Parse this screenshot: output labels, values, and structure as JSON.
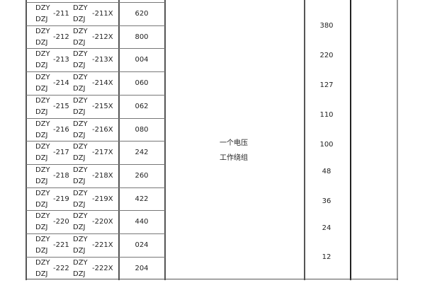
{
  "rows": [
    {
      "a": "DZY",
      "b": "DZJ",
      "num": "-211",
      "c": "DZY",
      "d": "DZJ",
      "numx": "-211X",
      "code": "620"
    },
    {
      "a": "DZY",
      "b": "DZJ",
      "num": "-212",
      "c": "DZY",
      "d": "DZJ",
      "numx": "-212X",
      "code": "800"
    },
    {
      "a": "DZY",
      "b": "DZJ",
      "num": "-213",
      "c": "DZY",
      "d": "DZJ",
      "numx": "-213X",
      "code": "004"
    },
    {
      "a": "DZY",
      "b": "DZJ",
      "num": "-214",
      "c": "DZY",
      "d": "DZJ",
      "numx": "-214X",
      "code": "060"
    },
    {
      "a": "DZY",
      "b": "DZJ",
      "num": "-215",
      "c": "DZY",
      "d": "DZJ",
      "numx": "-215X",
      "code": "062"
    },
    {
      "a": "DZY",
      "b": "DZJ",
      "num": "-216",
      "c": "DZY",
      "d": "DZJ",
      "numx": "-216X",
      "code": "080"
    },
    {
      "a": "DZY",
      "b": "DZJ",
      "num": "-217",
      "c": "DZY",
      "d": "DZJ",
      "numx": "-217X",
      "code": "242"
    },
    {
      "a": "DZY",
      "b": "DZJ",
      "num": "-218",
      "c": "DZY",
      "d": "DZJ",
      "numx": "-218X",
      "code": "260"
    },
    {
      "a": "DZY",
      "b": "DZJ",
      "num": "-219",
      "c": "DZY",
      "d": "DZJ",
      "numx": "-219X",
      "code": "422"
    },
    {
      "a": "DZY",
      "b": "DZJ",
      "num": "-220",
      "c": "DZY",
      "d": "DZJ",
      "numx": "-220X",
      "code": "440"
    },
    {
      "a": "DZY",
      "b": "DZJ",
      "num": "-221",
      "c": "DZY",
      "d": "DZJ",
      "numx": "-221X",
      "code": "024"
    },
    {
      "a": "DZY",
      "b": "DZJ",
      "num": "-222",
      "c": "DZY",
      "d": "DZJ",
      "numx": "-222X",
      "code": "204"
    }
  ],
  "winding": {
    "line1": "一个电压",
    "line2": "工作绕组"
  },
  "voltages": [
    "380",
    "220",
    "127",
    "110",
    "100",
    "48",
    "36",
    "24",
    "12"
  ]
}
